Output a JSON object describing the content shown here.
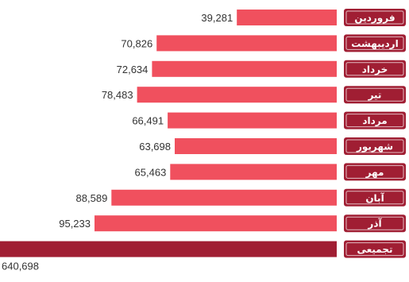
{
  "chart_data": {
    "type": "bar",
    "orientation": "horizontal",
    "categories": [
      "فروردین",
      "اردیبهشت",
      "خرداد",
      "تیر",
      "مرداد",
      "شهریور",
      "مهر",
      "آبان",
      "آذر",
      "تجمیعی"
    ],
    "values": [
      39281,
      70826,
      72634,
      78483,
      66491,
      63698,
      65463,
      88589,
      95233,
      640698
    ],
    "value_labels": [
      "39,281",
      "70,826",
      "72,634",
      "78,483",
      "66,491",
      "63,698",
      "65,463",
      "88,589",
      "95,233",
      "640,698"
    ],
    "title": "",
    "xlabel": "",
    "ylabel": "",
    "bars_grow_from": "right",
    "grid": false,
    "legend": "none"
  },
  "colors": {
    "monthly_bar": "#f0505e",
    "total_bar": "#a01e33",
    "label_box": "#a01e33",
    "label_text": "#ffffff",
    "value_text": "#333333"
  }
}
